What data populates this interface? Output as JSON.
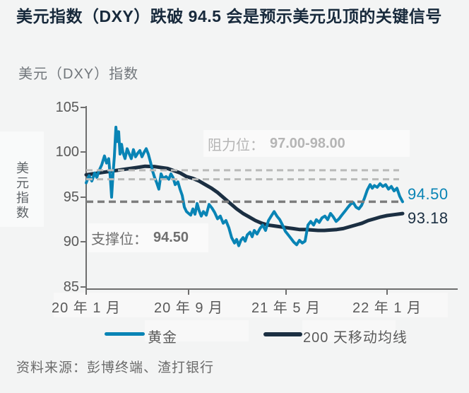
{
  "title": "美元指数（DXY）跌破 94.5 会是预示美元见顶的关键信号",
  "subtitle": "美元（DXY）指数",
  "y_axis_title": "美元指数",
  "source": "资料来源：彭博终端、渣打银行",
  "annotations": {
    "resistance_label": "阻力位：",
    "resistance_value": "97.00-98.00",
    "support_label": "支撑位：",
    "support_value": "94.50"
  },
  "end_labels": {
    "dxy": "94.50",
    "ma200": "93.18"
  },
  "legend": [
    {
      "name": "黄金",
      "color": "#0984b5"
    },
    {
      "name": "200 天移动均线",
      "color": "#1b2f42"
    }
  ],
  "colors": {
    "background": "#f3f4f4",
    "title": "#17293b",
    "subtitle": "#71767b",
    "axis": "#6e6e6e",
    "tick_labels": "#595959",
    "dxy_line": "#0984b5",
    "ma_line": "#1b2f42",
    "ref_line_light": "#b9bab9",
    "ref_line_dark": "#7d7d7d",
    "resistance_text": "#b5b5b5",
    "support_text": "#6f6f6f"
  },
  "chart_data": {
    "type": "line",
    "title": "美元（DXY）指数",
    "ylabel": "美元指数",
    "ylim": [
      85,
      105
    ],
    "yticks": [
      "105",
      "100",
      "95",
      "90",
      "85"
    ],
    "xticks": [
      "20 年 1 月",
      "20 年 9 月",
      "21 年 5 月",
      "22 年 1 月"
    ],
    "x_unit": "months_since_jan_2020",
    "grid": false,
    "legend_position": "bottom",
    "reference_lines": [
      {
        "value": 98.0,
        "style": "light-dashed"
      },
      {
        "value": 97.0,
        "style": "light-dashed"
      },
      {
        "value": 94.5,
        "style": "dark-dashed"
      }
    ],
    "series": [
      {
        "name": "黄金",
        "color": "#0984b5",
        "end_value": 94.5,
        "points": [
          [
            0,
            96.6
          ],
          [
            0.23,
            97.4
          ],
          [
            0.45,
            96.8
          ],
          [
            0.68,
            97.7
          ],
          [
            0.85,
            97.2
          ],
          [
            1.01,
            97.9
          ],
          [
            1.24,
            98.6
          ],
          [
            1.46,
            99.6
          ],
          [
            1.63,
            98.8
          ],
          [
            1.8,
            99.3
          ],
          [
            1.92,
            97.3
          ],
          [
            2.03,
            95.0
          ],
          [
            2.14,
            97.6
          ],
          [
            2.25,
            99.5
          ],
          [
            2.37,
            102.8
          ],
          [
            2.48,
            101.2
          ],
          [
            2.59,
            102.3
          ],
          [
            2.7,
            99.8
          ],
          [
            2.82,
            100.9
          ],
          [
            2.93,
            100.0
          ],
          [
            3.1,
            99.3
          ],
          [
            3.27,
            100.4
          ],
          [
            3.44,
            99.8
          ],
          [
            3.6,
            99.3
          ],
          [
            3.77,
            100.3
          ],
          [
            3.94,
            99.5
          ],
          [
            4.11,
            99.9
          ],
          [
            4.28,
            100.2
          ],
          [
            4.45,
            99.5
          ],
          [
            4.62,
            100.0
          ],
          [
            4.79,
            100.4
          ],
          [
            4.96,
            99.8
          ],
          [
            5.13,
            98.9
          ],
          [
            5.3,
            97.9
          ],
          [
            5.46,
            97.2
          ],
          [
            5.63,
            96.6
          ],
          [
            5.8,
            95.9
          ],
          [
            5.97,
            97.6
          ],
          [
            6.14,
            97.1
          ],
          [
            6.37,
            97.3
          ],
          [
            6.59,
            97.0
          ],
          [
            6.76,
            97.6
          ],
          [
            6.93,
            97.2
          ],
          [
            7.1,
            96.4
          ],
          [
            7.32,
            96.7
          ],
          [
            7.49,
            95.9
          ],
          [
            7.66,
            95.2
          ],
          [
            7.83,
            93.9
          ],
          [
            8.0,
            93.4
          ],
          [
            8.17,
            93.2
          ],
          [
            8.34,
            93.0
          ],
          [
            8.51,
            93.7
          ],
          [
            8.68,
            93.1
          ],
          [
            8.85,
            94.3
          ],
          [
            9.01,
            93.5
          ],
          [
            9.18,
            92.9
          ],
          [
            9.35,
            93.4
          ],
          [
            9.58,
            93.0
          ],
          [
            9.8,
            94.2
          ],
          [
            10.03,
            93.8
          ],
          [
            10.25,
            93.3
          ],
          [
            10.48,
            92.6
          ],
          [
            10.7,
            92.9
          ],
          [
            10.93,
            92.1
          ],
          [
            11.15,
            92.4
          ],
          [
            11.38,
            91.6
          ],
          [
            11.6,
            90.5
          ],
          [
            11.83,
            89.9
          ],
          [
            12.0,
            90.3
          ],
          [
            12.17,
            89.6
          ],
          [
            12.34,
            90.2
          ],
          [
            12.51,
            90.5
          ],
          [
            12.68,
            90.1
          ],
          [
            12.85,
            90.8
          ],
          [
            13.07,
            91.1
          ],
          [
            13.24,
            90.6
          ],
          [
            13.41,
            91.3
          ],
          [
            13.63,
            90.9
          ],
          [
            13.86,
            91.5
          ],
          [
            14.08,
            91.9
          ],
          [
            14.31,
            91.3
          ],
          [
            14.54,
            92.4
          ],
          [
            14.76,
            92.9
          ],
          [
            14.99,
            93.4
          ],
          [
            15.21,
            92.9
          ],
          [
            15.44,
            92.5
          ],
          [
            15.66,
            91.9
          ],
          [
            15.89,
            91.2
          ],
          [
            16.11,
            90.8
          ],
          [
            16.34,
            90.4
          ],
          [
            16.56,
            90.0
          ],
          [
            16.79,
            89.7
          ],
          [
            17.01,
            90.2
          ],
          [
            17.24,
            89.9
          ],
          [
            17.46,
            90.1
          ],
          [
            17.69,
            91.9
          ],
          [
            17.91,
            92.3
          ],
          [
            18.14,
            91.9
          ],
          [
            18.36,
            92.5
          ],
          [
            18.59,
            92.2
          ],
          [
            18.81,
            92.7
          ],
          [
            19.04,
            92.9
          ],
          [
            19.26,
            92.5
          ],
          [
            19.49,
            93.2
          ],
          [
            19.71,
            92.8
          ],
          [
            19.94,
            92.3
          ],
          [
            20.17,
            92.6
          ],
          [
            20.39,
            93.0
          ],
          [
            20.62,
            93.4
          ],
          [
            20.84,
            93.8
          ],
          [
            21.07,
            94.2
          ],
          [
            21.3,
            94.4
          ],
          [
            21.52,
            93.9
          ],
          [
            21.75,
            93.7
          ],
          [
            21.97,
            94.1
          ],
          [
            22.2,
            94.9
          ],
          [
            22.42,
            95.8
          ],
          [
            22.65,
            96.4
          ],
          [
            22.82,
            96.0
          ],
          [
            22.99,
            96.3
          ],
          [
            23.21,
            96.1
          ],
          [
            23.44,
            96.5
          ],
          [
            23.66,
            96.2
          ],
          [
            23.89,
            96.4
          ],
          [
            24.11,
            95.9
          ],
          [
            24.34,
            96.2
          ],
          [
            24.56,
            95.7
          ],
          [
            24.79,
            96.0
          ],
          [
            25.01,
            95.1
          ],
          [
            25.24,
            94.5
          ]
        ]
      },
      {
        "name": "200 天移动均线",
        "color": "#1b2f42",
        "end_value": 93.18,
        "points": [
          [
            0,
            97.5
          ],
          [
            1,
            97.7
          ],
          [
            2,
            97.9
          ],
          [
            3,
            98.1
          ],
          [
            4,
            98.3
          ],
          [
            4.7,
            98.45
          ],
          [
            5.5,
            98.4
          ],
          [
            6.5,
            98.2
          ],
          [
            7.5,
            97.7
          ],
          [
            8,
            97.3
          ],
          [
            8.5,
            97.1
          ],
          [
            9,
            96.8
          ],
          [
            9.5,
            96.4
          ],
          [
            10,
            96.0
          ],
          [
            10.5,
            95.5
          ],
          [
            11,
            94.9
          ],
          [
            11.5,
            94.3
          ],
          [
            12,
            93.7
          ],
          [
            12.5,
            93.2
          ],
          [
            13,
            92.8
          ],
          [
            13.5,
            92.4
          ],
          [
            14,
            92.1
          ],
          [
            14.5,
            91.9
          ],
          [
            15,
            91.8
          ],
          [
            15.5,
            91.7
          ],
          [
            16,
            91.6
          ],
          [
            16.5,
            91.5
          ],
          [
            17,
            91.4
          ],
          [
            17.5,
            91.4
          ],
          [
            18,
            91.35
          ],
          [
            18.5,
            91.3
          ],
          [
            19,
            91.3
          ],
          [
            19.5,
            91.35
          ],
          [
            20,
            91.4
          ],
          [
            20.5,
            91.5
          ],
          [
            21,
            91.7
          ],
          [
            21.5,
            91.9
          ],
          [
            22,
            92.1
          ],
          [
            22.5,
            92.4
          ],
          [
            23,
            92.6
          ],
          [
            23.5,
            92.8
          ],
          [
            24,
            92.95
          ],
          [
            24.5,
            93.05
          ],
          [
            25.24,
            93.18
          ]
        ]
      }
    ]
  }
}
